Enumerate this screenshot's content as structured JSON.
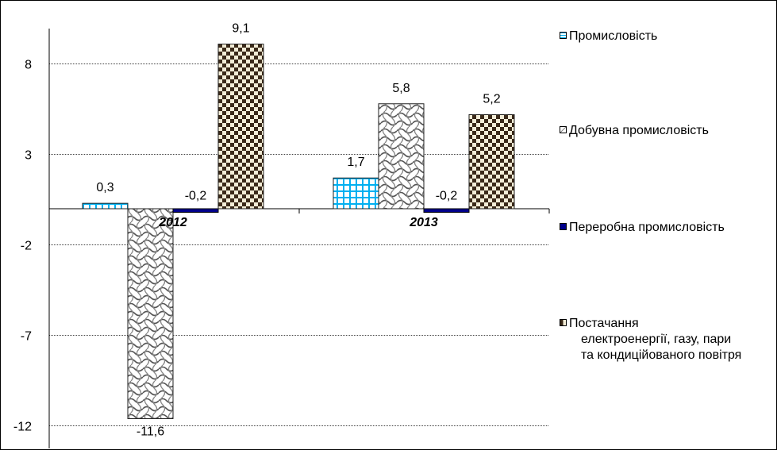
{
  "chart_data": {
    "type": "bar",
    "categories": [
      "2012",
      "2013"
    ],
    "series": [
      {
        "name": "Промисловість",
        "values": [
          0.3,
          1.7
        ],
        "labels": [
          "0,3",
          "1,7"
        ],
        "pattern": "grid",
        "color": "#00b0f0"
      },
      {
        "name": "Добувна промисловість",
        "values": [
          -11.6,
          5.8
        ],
        "labels": [
          "-11,6",
          "5,8"
        ],
        "pattern": "wave",
        "color": "#6d6d6d"
      },
      {
        "name": "Переробна промисловість",
        "values": [
          -0.2,
          -0.2
        ],
        "labels": [
          "-0,2",
          "-0,2"
        ],
        "pattern": "solid",
        "color": "#00008b"
      },
      {
        "name_lines": [
          "Постачання",
          "електроенергії, газу, пари",
          "та кондиційованого повітря"
        ],
        "values": [
          9.1,
          5.2
        ],
        "labels": [
          "9,1",
          "5,2"
        ],
        "pattern": "checker",
        "color": "#3b2a1a"
      }
    ],
    "yticks": [
      "8",
      "3",
      "-2",
      "-7",
      "-12"
    ],
    "ylim": [
      -12,
      10
    ],
    "grid": true,
    "legend_position": "right"
  }
}
